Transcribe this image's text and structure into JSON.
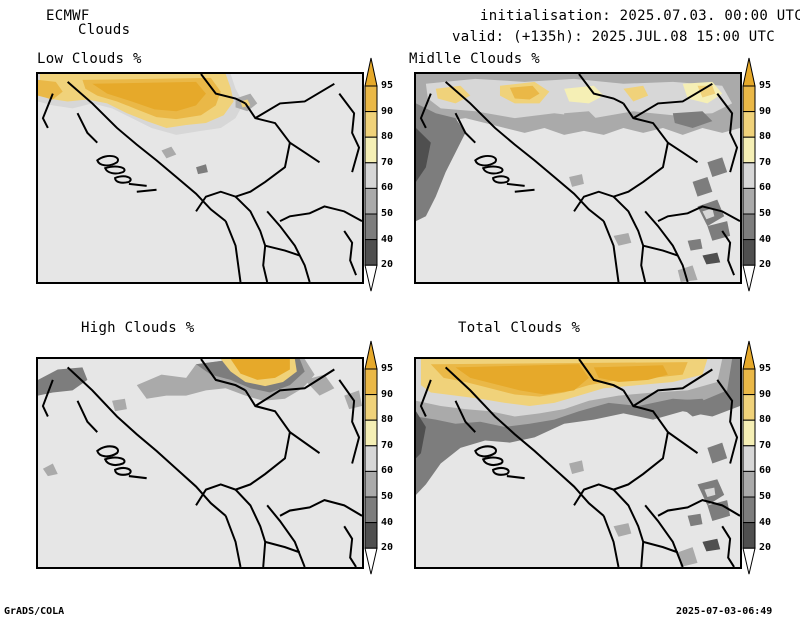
{
  "header": {
    "model": "ECMWF",
    "product": "Clouds",
    "init": "initialisation: 2025.07.03. 00:00 UTC",
    "valid": "valid: (+135h): 2025.JUL.08 15:00 UTC"
  },
  "panels": [
    {
      "title": "Low Clouds %"
    },
    {
      "title": "Midlle Clouds %"
    },
    {
      "title": "High Clouds %"
    },
    {
      "title": "Total Clouds %"
    }
  ],
  "colorbar": {
    "ticks": [
      "95",
      "90",
      "80",
      "70",
      "60",
      "50",
      "40",
      "20"
    ],
    "colors": [
      "#e6a92a",
      "#eab847",
      "#f0d27a",
      "#f5efb5",
      "#d7d7d7",
      "#aaaaaa",
      "#7d7d7d",
      "#4f4f4f",
      "#ffffff"
    ]
  },
  "footer": {
    "left": "GrADS/COLA",
    "right": "2025-07-03-06:49"
  }
}
